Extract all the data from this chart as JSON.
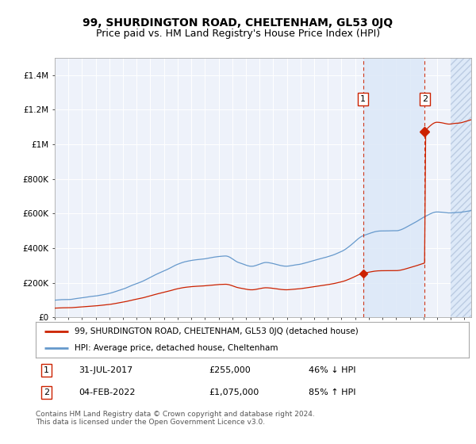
{
  "title": "99, SHURDINGTON ROAD, CHELTENHAM, GL53 0JQ",
  "subtitle": "Price paid vs. HM Land Registry's House Price Index (HPI)",
  "title_fontsize": 10,
  "subtitle_fontsize": 9,
  "hpi_color": "#6699cc",
  "property_color": "#cc2200",
  "transaction1_date": 2017.583,
  "transaction1_value": 255000,
  "transaction1_label": "31-JUL-2017",
  "transaction1_price": "£255,000",
  "transaction1_hpi": "46% ↓ HPI",
  "transaction2_date": 2022.09,
  "transaction2_value": 1075000,
  "transaction2_label": "04-FEB-2022",
  "transaction2_price": "£1,075,000",
  "transaction2_hpi": "85% ↑ HPI",
  "ylim": [
    0,
    1500000
  ],
  "xlim_left": 1995.0,
  "xlim_right": 2025.5,
  "yticks": [
    0,
    200000,
    400000,
    600000,
    800000,
    1000000,
    1200000,
    1400000
  ],
  "ytick_labels": [
    "£0",
    "£200K",
    "£400K",
    "£600K",
    "£800K",
    "£1M",
    "£1.2M",
    "£1.4M"
  ],
  "xticks": [
    1995,
    1996,
    1997,
    1998,
    1999,
    2000,
    2001,
    2002,
    2003,
    2004,
    2005,
    2006,
    2007,
    2008,
    2009,
    2010,
    2011,
    2012,
    2013,
    2014,
    2015,
    2016,
    2017,
    2018,
    2019,
    2020,
    2021,
    2022,
    2023,
    2024,
    2025
  ],
  "legend_property": "99, SHURDINGTON ROAD, CHELTENHAM, GL53 0JQ (detached house)",
  "legend_hpi": "HPI: Average price, detached house, Cheltenham",
  "footer": "Contains HM Land Registry data © Crown copyright and database right 2024.\nThis data is licensed under the Open Government Licence v3.0.",
  "background_color": "#ffffff",
  "plot_bg_color": "#eef2fa",
  "grid_color": "#ffffff",
  "highlight_color": "#dce8f8",
  "hatch_bg_color": "#dce8f8"
}
